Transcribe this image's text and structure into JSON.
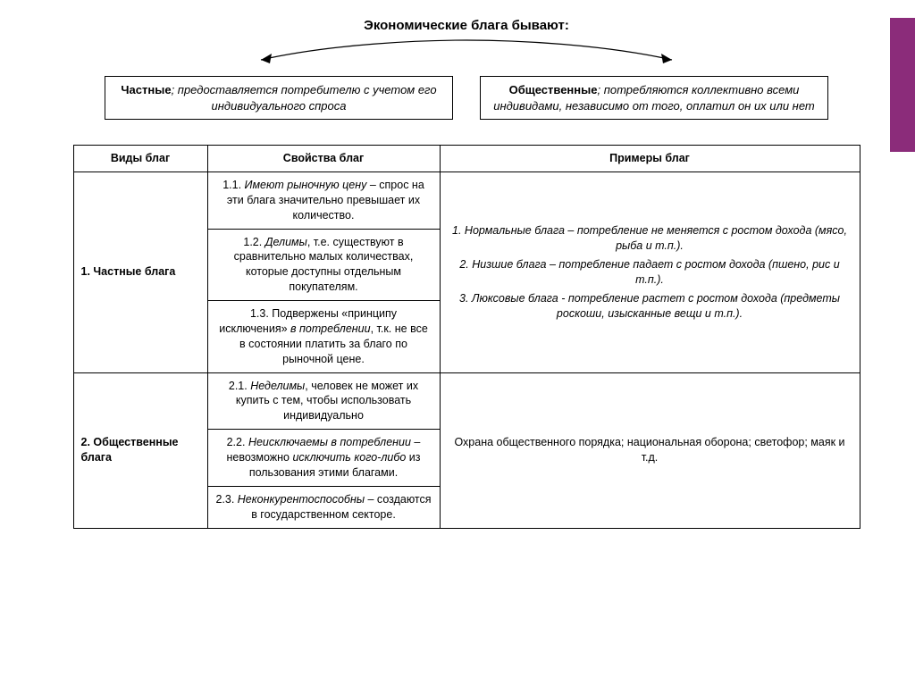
{
  "colors": {
    "accent": "#8b2c7a",
    "border": "#000000",
    "bg": "#ffffff",
    "text": "#000000"
  },
  "title": "Экономические блага бывают:",
  "branches": {
    "left": {
      "lead": "Частные",
      "rest": "; предоставляется потребителю с учетом его индивидуального спроса"
    },
    "right": {
      "lead": "Общественные",
      "rest": "; потребляются коллективно всеми индивидами, независимо от того, оплатил он их или нет"
    }
  },
  "table": {
    "headers": {
      "type": "Виды благ",
      "properties": "Свойства благ",
      "examples": "Примеры благ"
    },
    "rows": [
      {
        "type": "1. Частные блага",
        "properties": [
          "1.1. <span class=\"i\">Имеют рыночную цену</span> – спрос на эти блага значительно превышает их количество.",
          "1.2. <span class=\"i\">Делимы</span>, т.е. существуют в сравнительно малых количествах, которые доступны отдельным покупателям.",
          "1.3. Подвержены «принципу исключения» <span class=\"i\">в потреблении</span>, т.к. не все в состоянии платить за благо по рыночной цене."
        ],
        "examples": [
          "1. Нормальные блага – потребление не меняется с ростом дохода (мясо, рыба и т.п.).",
          "2. Низшие блага – потребление падает с ростом дохода (пшено, рис и т.п.).",
          "3. Люксовые блага - потребление растет с ростом дохода (предметы роскоши, изысканные вещи и т.п.)."
        ]
      },
      {
        "type": "2. Общественные блага",
        "properties": [
          "2.1. <span class=\"i\">Неделимы</span>, человек не может их купить с тем, чтобы использовать индивидуально",
          "2.2. <span class=\"i\">Неисключаемы в потреблении</span> – невозможно <span class=\"i\">исключить кого-либо</span> из пользования этими благами.",
          "2.3. <span class=\"i\">Неконкурентоспособны</span> – создаются в государственном секторе."
        ],
        "examples_plain": "Охрана общественного порядка; национальная оборона; светофор; маяк и т.д."
      }
    ]
  }
}
